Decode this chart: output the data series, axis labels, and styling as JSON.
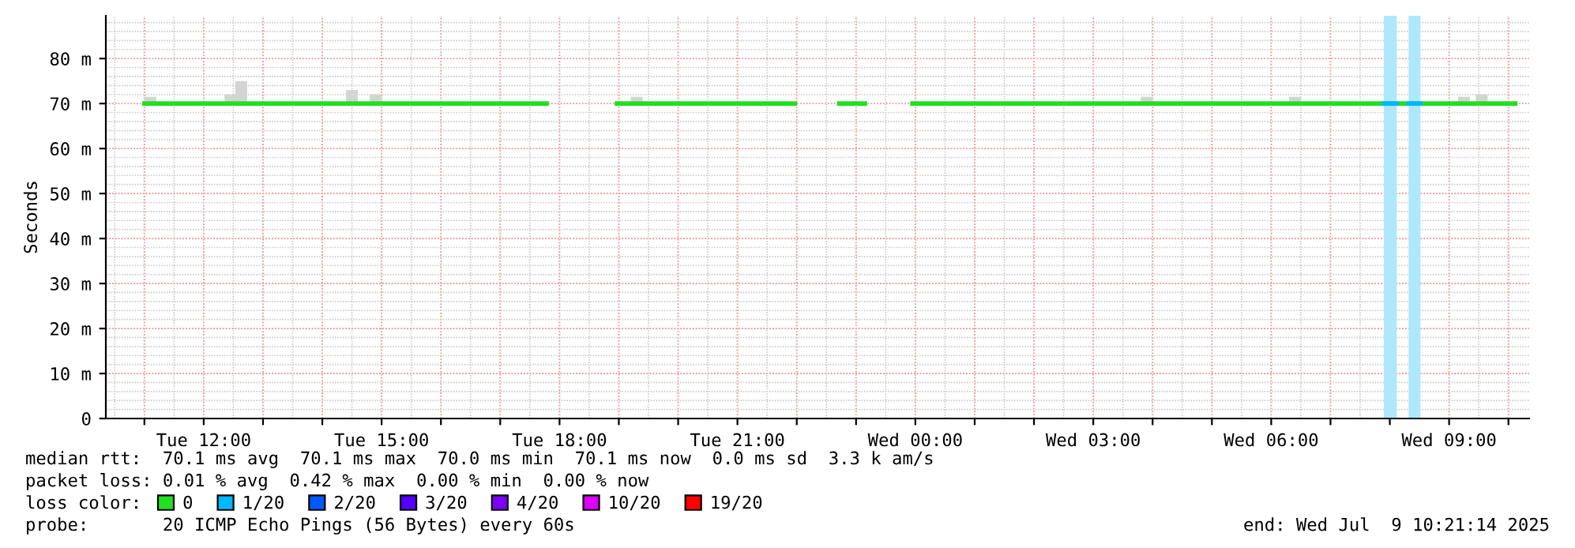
{
  "chart_data": {
    "type": "line",
    "ylabel": "Seconds",
    "xlim": [
      "2025-07-08T10:21",
      "2025-07-09T10:21"
    ],
    "xticks": [
      {
        "value": "2025-07-08T11:00",
        "label": null
      },
      {
        "value": "2025-07-08T12:00",
        "label": "Tue 12:00"
      },
      {
        "value": "2025-07-08T13:00",
        "label": null
      },
      {
        "value": "2025-07-08T14:00",
        "label": null
      },
      {
        "value": "2025-07-08T15:00",
        "label": "Tue 15:00"
      },
      {
        "value": "2025-07-08T16:00",
        "label": null
      },
      {
        "value": "2025-07-08T17:00",
        "label": null
      },
      {
        "value": "2025-07-08T18:00",
        "label": "Tue 18:00"
      },
      {
        "value": "2025-07-08T19:00",
        "label": null
      },
      {
        "value": "2025-07-08T20:00",
        "label": null
      },
      {
        "value": "2025-07-08T21:00",
        "label": "Tue 21:00"
      },
      {
        "value": "2025-07-08T22:00",
        "label": null
      },
      {
        "value": "2025-07-08T23:00",
        "label": null
      },
      {
        "value": "2025-07-09T00:00",
        "label": "Wed 00:00"
      },
      {
        "value": "2025-07-09T01:00",
        "label": null
      },
      {
        "value": "2025-07-09T02:00",
        "label": null
      },
      {
        "value": "2025-07-09T03:00",
        "label": "Wed 03:00"
      },
      {
        "value": "2025-07-09T04:00",
        "label": null
      },
      {
        "value": "2025-07-09T05:00",
        "label": null
      },
      {
        "value": "2025-07-09T06:00",
        "label": "Wed 06:00"
      },
      {
        "value": "2025-07-09T07:00",
        "label": null
      },
      {
        "value": "2025-07-09T08:00",
        "label": null
      },
      {
        "value": "2025-07-09T09:00",
        "label": "Wed 09:00"
      },
      {
        "value": "2025-07-09T10:00",
        "label": null
      }
    ],
    "ylim": [
      0,
      89.5
    ],
    "yticks": [
      0,
      {
        "value": 10,
        "label": "10 m"
      },
      {
        "value": 20,
        "label": "20 m"
      },
      {
        "value": 30,
        "label": "30 m"
      },
      {
        "value": 40,
        "label": "40 m"
      },
      {
        "value": 50,
        "label": "50 m"
      },
      {
        "value": 60,
        "label": "60 m"
      },
      {
        "value": 70,
        "label": "70 m"
      },
      {
        "value": 80,
        "label": "80 m"
      }
    ],
    "grid": true,
    "legend": "bottom",
    "legend_title": "loss color:",
    "series": [
      {
        "type": "bar",
        "color": "#d4d4d4",
        "x": [
          "2025-07-08T11:06",
          "2025-07-08T12:27",
          "2025-07-08T12:38",
          "2025-07-08T14:30",
          "2025-07-08T14:54",
          "2025-07-08T19:18",
          "2025-07-09T03:54",
          "2025-07-09T06:24",
          "2025-07-09T09:15",
          "2025-07-09T09:33"
        ],
        "base": [
          70,
          70,
          70,
          70,
          70,
          70,
          70,
          70,
          70,
          70
        ],
        "values": [
          1.5,
          2,
          5,
          3,
          2,
          1.5,
          1.5,
          1.5,
          1.5,
          2
        ]
      },
      {
        "name": "0",
        "color": "#20e020",
        "x": [
          "2025-07-08T11:00",
          "2025-07-08T17:47",
          "2025-07-08T18:24",
          "2025-07-08T18:58",
          "2025-07-08T21:58",
          "2025-07-08T22:24",
          "2025-07-08T22:43",
          "2025-07-08T23:09",
          "2025-07-08T23:30",
          "2025-07-08T23:57",
          "2025-07-09T10:07"
        ],
        "values": [
          70,
          70,
          null,
          70,
          70,
          null,
          70,
          70,
          null,
          70,
          70
        ]
      },
      {
        "name": "1/20",
        "color": "#00b8ff",
        "x": [
          "2025-07-09T07:54",
          "2025-07-09T08:07",
          "2025-07-09T08:12",
          "2025-07-09T08:19",
          "2025-07-09T08:31"
        ],
        "values": [
          70,
          70,
          null,
          70,
          70
        ]
      },
      {
        "name": "2/20",
        "color": "#0059ff"
      },
      {
        "name": "3/20",
        "color": "#5500ff"
      },
      {
        "name": "4/20",
        "color": "#7d00ff"
      },
      {
        "name": "10/20",
        "color": "#dd00ff"
      },
      {
        "name": "19/20",
        "color": "#ff0000"
      }
    ],
    "bands": [
      {
        "axis": "x",
        "from": "2025-07-09T07:54",
        "to": "2025-07-09T08:07",
        "color": "#aee8fa"
      },
      {
        "axis": "x",
        "from": "2025-07-09T08:19",
        "to": "2025-07-09T08:31",
        "color": "#aee8fa"
      }
    ],
    "annotations": [
      "median rtt:  70.1 ms avg  70.1 ms max  70.0 ms min  70.1 ms now  0.0 ms sd  3.3 k am/s",
      "packet loss: 0.01 % avg  0.42 % max  0.00 % min  0.00 % now",
      "probe:       20 ICMP Echo Pings (56 Bytes) every 60s",
      "end: Wed Jul  9 10:21:14 2025"
    ]
  }
}
